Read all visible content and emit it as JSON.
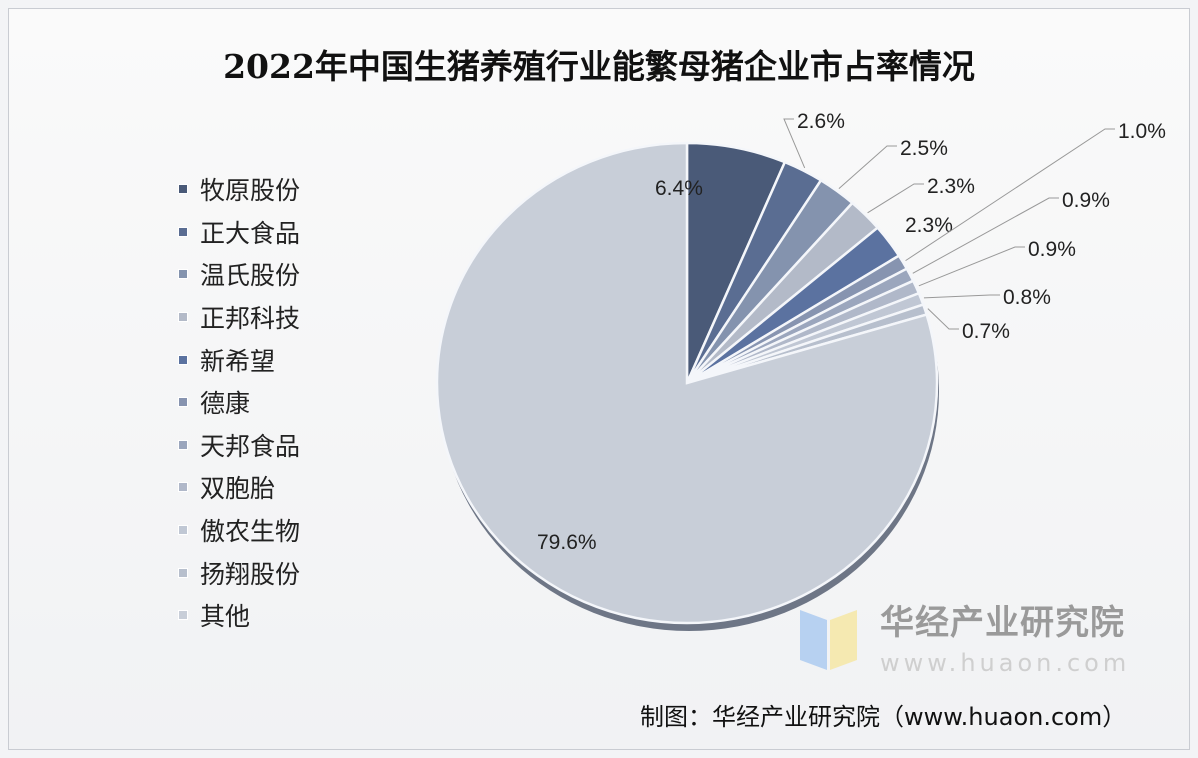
{
  "chart_data": {
    "type": "pie",
    "title": "2022年中国生猪养殖行业能繁母猪企业市占率情况",
    "categories": [
      "牧原股份",
      "正大食品",
      "温氏股份",
      "正邦科技",
      "新希望",
      "德康",
      "天邦食品",
      "双胞胎",
      "傲农生物",
      "扬翔股份",
      "其他"
    ],
    "values": [
      6.4,
      2.6,
      2.5,
      2.3,
      2.3,
      1.0,
      0.9,
      0.9,
      0.8,
      0.7,
      79.6
    ],
    "data_labels": [
      "6.4%",
      "2.6%",
      "2.5%",
      "2.3%",
      "2.3%",
      "1.0%",
      "0.9%",
      "0.9%",
      "0.8%",
      "0.7%",
      "79.6%"
    ],
    "colors": [
      "#4a5a78",
      "#5a6d92",
      "#8493ae",
      "#b3bac8",
      "#5b72a0",
      "#8794b0",
      "#9ba6bd",
      "#b0b8c9",
      "#c0c7d4",
      "#b7bfcd",
      "#c8ced8"
    ],
    "legend_position": "left",
    "start_angle": "12 o'clock, clockwise"
  },
  "watermark": {
    "name": "华经产业研究院",
    "url": "www.huaon.com"
  },
  "credit": "制图：华经产业研究院（www.huaon.com）"
}
